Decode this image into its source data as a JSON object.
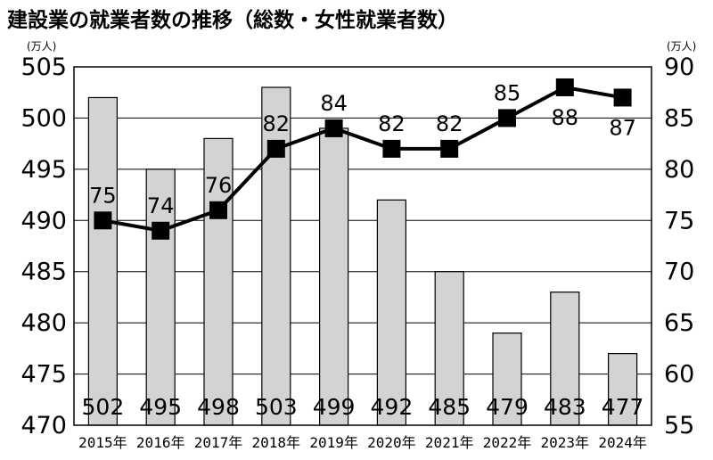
{
  "chart_data": {
    "type": "bar+line",
    "title": "建設業の就業者数の推移（総数・女性就業者数）",
    "left_axis_unit": "(万人)",
    "right_axis_unit": "(万人)",
    "categories": [
      "2015年",
      "2016年",
      "2017年",
      "2018年",
      "2019年",
      "2020年",
      "2021年",
      "2022年",
      "2023年",
      "2024年"
    ],
    "series": [
      {
        "type": "bar",
        "axis": "left",
        "values": [
          502,
          495,
          498,
          503,
          499,
          492,
          485,
          479,
          483,
          477
        ],
        "color": "#d3d3d3"
      },
      {
        "type": "line",
        "axis": "right",
        "values": [
          75,
          74,
          76,
          82,
          84,
          82,
          82,
          85,
          88,
          87
        ],
        "color": "#000000"
      }
    ],
    "left_ylim": [
      470,
      505
    ],
    "left_ticks": [
      470,
      475,
      480,
      485,
      490,
      495,
      500,
      505
    ],
    "right_ylim": [
      55,
      90
    ],
    "right_ticks": [
      55,
      60,
      65,
      70,
      75,
      80,
      85,
      90
    ],
    "grid": true
  }
}
